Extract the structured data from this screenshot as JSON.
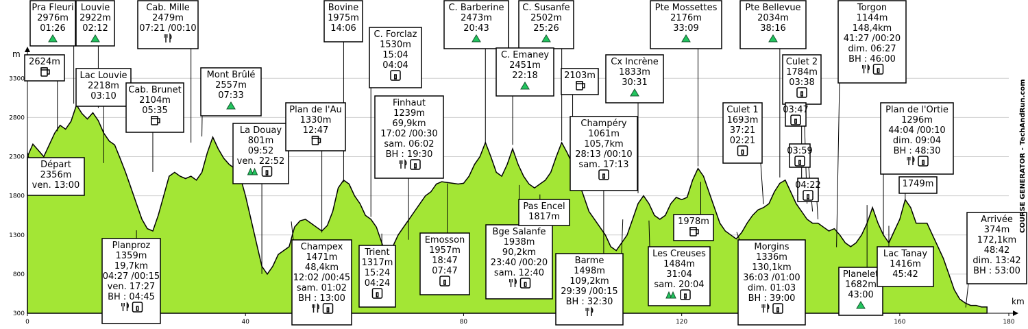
{
  "chart_data": {
    "type": "area",
    "xlabel": "km",
    "ylabel": "m",
    "xlim": [
      0,
      180
    ],
    "ylim": [
      300,
      3600
    ],
    "x_ticks": [
      0,
      40,
      80,
      120,
      160,
      180
    ],
    "y_ticks": [
      300,
      800,
      1300,
      1800,
      2300,
      2800,
      3300
    ],
    "grid": "horizontal",
    "fill_color": "#a3e635",
    "profile": [
      [
        0,
        2300
      ],
      [
        1,
        2460
      ],
      [
        3,
        2300
      ],
      [
        4,
        2450
      ],
      [
        5,
        2600
      ],
      [
        6,
        2700
      ],
      [
        7,
        2650
      ],
      [
        8,
        2750
      ],
      [
        9,
        2960
      ],
      [
        10,
        2850
      ],
      [
        11,
        2780
      ],
      [
        12,
        2860
      ],
      [
        13,
        2760
      ],
      [
        14,
        2600
      ],
      [
        15,
        2500
      ],
      [
        16,
        2450
      ],
      [
        17,
        2280
      ],
      [
        18,
        2100
      ],
      [
        19,
        1900
      ],
      [
        20,
        1700
      ],
      [
        21,
        1500
      ],
      [
        22,
        1380
      ],
      [
        23,
        1350
      ],
      [
        24,
        1550
      ],
      [
        25,
        1800
      ],
      [
        26,
        2050
      ],
      [
        27,
        2100
      ],
      [
        28,
        2050
      ],
      [
        29,
        2020
      ],
      [
        30,
        2050
      ],
      [
        31,
        2000
      ],
      [
        32,
        2100
      ],
      [
        33,
        2350
      ],
      [
        34,
        2550
      ],
      [
        35,
        2400
      ],
      [
        36,
        2280
      ],
      [
        37,
        2200
      ],
      [
        38,
        2150
      ],
      [
        39,
        2050
      ],
      [
        40,
        1800
      ],
      [
        41,
        1500
      ],
      [
        42,
        1200
      ],
      [
        43,
        900
      ],
      [
        44,
        800
      ],
      [
        45,
        900
      ],
      [
        46,
        1050
      ],
      [
        47,
        1100
      ],
      [
        48,
        1150
      ],
      [
        49,
        1400
      ],
      [
        50,
        1480
      ],
      [
        51,
        1500
      ],
      [
        52,
        1450
      ],
      [
        53,
        1400
      ],
      [
        54,
        1350
      ],
      [
        55,
        1420
      ],
      [
        56,
        1600
      ],
      [
        57,
        1900
      ],
      [
        58,
        2000
      ],
      [
        59,
        1950
      ],
      [
        60,
        1800
      ],
      [
        61,
        1700
      ],
      [
        62,
        1550
      ],
      [
        63,
        1500
      ],
      [
        64,
        1400
      ],
      [
        65,
        1200
      ],
      [
        66,
        1000
      ],
      [
        67,
        1150
      ],
      [
        68,
        1300
      ],
      [
        69,
        1400
      ],
      [
        70,
        1500
      ],
      [
        71,
        1600
      ],
      [
        72,
        1700
      ],
      [
        73,
        1800
      ],
      [
        74,
        1850
      ],
      [
        75,
        1950
      ],
      [
        76,
        1980
      ],
      [
        77,
        1970
      ],
      [
        78,
        1960
      ],
      [
        79,
        1950
      ],
      [
        80,
        1960
      ],
      [
        81,
        2050
      ],
      [
        82,
        2200
      ],
      [
        83,
        2300
      ],
      [
        84,
        2480
      ],
      [
        85,
        2300
      ],
      [
        86,
        2100
      ],
      [
        87,
        2050
      ],
      [
        88,
        2200
      ],
      [
        89,
        2400
      ],
      [
        90,
        2200
      ],
      [
        91,
        2050
      ],
      [
        92,
        1950
      ],
      [
        93,
        1900
      ],
      [
        94,
        1950
      ],
      [
        95,
        2000
      ],
      [
        96,
        2100
      ],
      [
        97,
        2300
      ],
      [
        98,
        2480
      ],
      [
        99,
        2350
      ],
      [
        100,
        2200
      ],
      [
        101,
        2000
      ],
      [
        102,
        1800
      ],
      [
        103,
        1600
      ],
      [
        104,
        1500
      ],
      [
        105,
        1400
      ],
      [
        106,
        1300
      ],
      [
        107,
        1150
      ],
      [
        108,
        1100
      ],
      [
        109,
        1200
      ],
      [
        110,
        1300
      ],
      [
        111,
        1500
      ],
      [
        112,
        1700
      ],
      [
        113,
        1800
      ],
      [
        114,
        1700
      ],
      [
        115,
        1550
      ],
      [
        116,
        1500
      ],
      [
        117,
        1550
      ],
      [
        118,
        1700
      ],
      [
        119,
        1780
      ],
      [
        120,
        1750
      ],
      [
        121,
        1780
      ],
      [
        122,
        2000
      ],
      [
        123,
        2150
      ],
      [
        124,
        2050
      ],
      [
        125,
        1850
      ],
      [
        126,
        1650
      ],
      [
        127,
        1450
      ],
      [
        128,
        1350
      ],
      [
        129,
        1300
      ],
      [
        130,
        1250
      ],
      [
        131,
        1330
      ],
      [
        132,
        1450
      ],
      [
        133,
        1550
      ],
      [
        134,
        1620
      ],
      [
        135,
        1650
      ],
      [
        136,
        1700
      ],
      [
        137,
        1850
      ],
      [
        138,
        1960
      ],
      [
        139,
        2000
      ],
      [
        140,
        1850
      ],
      [
        141,
        1700
      ],
      [
        142,
        1600
      ],
      [
        143,
        1500
      ],
      [
        144,
        1450
      ],
      [
        145,
        1450
      ],
      [
        146,
        1400
      ],
      [
        147,
        1350
      ],
      [
        148,
        1380
      ],
      [
        149,
        1300
      ],
      [
        150,
        1200
      ],
      [
        151,
        1150
      ],
      [
        152,
        1200
      ],
      [
        153,
        1300
      ],
      [
        154,
        1450
      ],
      [
        155,
        1650
      ],
      [
        156,
        1450
      ],
      [
        157,
        1300
      ],
      [
        158,
        1200
      ],
      [
        159,
        1350
      ],
      [
        160,
        1500
      ],
      [
        161,
        1750
      ],
      [
        162,
        1650
      ],
      [
        163,
        1450
      ],
      [
        164,
        1450
      ],
      [
        165,
        1450
      ],
      [
        166,
        1300
      ],
      [
        167,
        1150
      ],
      [
        168,
        1000
      ],
      [
        169,
        800
      ],
      [
        170,
        600
      ],
      [
        171,
        480
      ],
      [
        172,
        430
      ],
      [
        173,
        400
      ],
      [
        174,
        400
      ],
      [
        175,
        380
      ],
      [
        176,
        380
      ]
    ],
    "annotations": [
      {
        "lines": [
          "Pra Fleuri",
          "2976m",
          "01:26"
        ],
        "icons": [
          "summit"
        ],
        "km": 8.5,
        "elev": 2976
      },
      {
        "lines": [
          "Louvie",
          "2922m",
          "02:12"
        ],
        "icons": [
          "summit"
        ],
        "km": 13,
        "elev": 2922
      },
      {
        "lines": [
          "Cab. Mille",
          "2479m",
          "07:21 /00:10"
        ],
        "icons": [
          "food"
        ],
        "km": 30,
        "elev": 2479
      },
      {
        "lines": [
          "2624m"
        ],
        "icons": [
          "beer"
        ],
        "km": 5.5,
        "elev": 2624
      },
      {
        "lines": [
          "Lac Louvie",
          "2218m",
          "03:10"
        ],
        "icons": [],
        "km": 14,
        "elev": 2218
      },
      {
        "lines": [
          "Cab. Brunet",
          "2104m",
          "05:35"
        ],
        "icons": [
          "beer"
        ],
        "km": 23,
        "elev": 2104
      },
      {
        "lines": [
          "Mont Brûlé",
          "2557m",
          "07:33"
        ],
        "icons": [
          "summit"
        ],
        "km": 32,
        "elev": 2557
      },
      {
        "lines": [
          "Départ",
          "2356m",
          "ven. 13:00"
        ],
        "icons": [],
        "km": 0,
        "elev": 2356
      },
      {
        "lines": [
          "La Douay",
          "801m",
          "09:52",
          "ven. 22:52"
        ],
        "icons": [
          "peaks",
          "info"
        ],
        "km": 43,
        "elev": 801
      },
      {
        "lines": [
          "Plan de l'Au",
          "1330m",
          "12:47"
        ],
        "icons": [
          "beer"
        ],
        "km": 54,
        "elev": 1330
      },
      {
        "lines": [
          "Bovine",
          "1975m",
          "14:06"
        ],
        "icons": [],
        "km": 58,
        "elev": 1975
      },
      {
        "lines": [
          "C. Forclaz",
          "1530m",
          "15:04",
          "04:04"
        ],
        "icons": [
          "info"
        ],
        "km": 63,
        "elev": 1530
      },
      {
        "lines": [
          "Planproz",
          "1359m",
          "19,7km",
          "04:27 /00:15",
          "ven. 17:27",
          "BH : 04:45"
        ],
        "icons": [
          "food",
          "info"
        ],
        "km": 20,
        "elev": 1359
      },
      {
        "lines": [
          "Champex",
          "1471m",
          "48,4km",
          "12:02 /00:45",
          "sam. 01:02",
          "BH : 13:00"
        ],
        "icons": [
          "food",
          "info"
        ],
        "km": 48.4,
        "elev": 1471
      },
      {
        "lines": [
          "Trient",
          "1317m",
          "15:24",
          "04:24"
        ],
        "icons": [
          "info"
        ],
        "km": 65,
        "elev": 1317
      },
      {
        "lines": [
          "Finhaut",
          "1239m",
          "69,9km",
          "17:02 /00:30",
          "sam. 06:02",
          "BH : 19:30"
        ],
        "icons": [
          "food",
          "info"
        ],
        "km": 69.9,
        "elev": 1239
      },
      {
        "lines": [
          "Emosson",
          "1957m",
          "18:47",
          "07:47"
        ],
        "icons": [
          "info"
        ],
        "km": 77,
        "elev": 1957
      },
      {
        "lines": [
          "C. Barberine",
          "2473m",
          "20:43"
        ],
        "icons": [
          "summit"
        ],
        "km": 84,
        "elev": 2473
      },
      {
        "lines": [
          "C. Susanfe",
          "2502m",
          "25:26"
        ],
        "icons": [
          "summit"
        ],
        "km": 98,
        "elev": 2502
      },
      {
        "lines": [
          "C. Emaney",
          "2451m",
          "22:18"
        ],
        "icons": [
          "summit"
        ],
        "km": 89,
        "elev": 2451
      },
      {
        "lines": [
          "2103m"
        ],
        "icons": [
          "beer"
        ],
        "km": 100,
        "elev": 2103
      },
      {
        "lines": [
          "Bge Salanfe",
          "1938m",
          "90,2km",
          "23:40 /00:20",
          "sam. 12:40"
        ],
        "icons": [
          "food",
          "info"
        ],
        "km": 90.2,
        "elev": 1938
      },
      {
        "lines": [
          "Pas Encel",
          "1817m"
        ],
        "icons": [],
        "km": 94,
        "elev": 1817
      },
      {
        "lines": [
          "Champéry",
          "1061m",
          "105,7km",
          "28:13 /00:10",
          "sam. 17:13"
        ],
        "icons": [
          "info"
        ],
        "km": 105.7,
        "elev": 1061
      },
      {
        "lines": [
          "Barme",
          "1498m",
          "109,2km",
          "29:39 /00:15",
          "BH : 32:30"
        ],
        "icons": [
          "food"
        ],
        "km": 109.2,
        "elev": 1498
      },
      {
        "lines": [
          "Cx Incrène",
          "1833m",
          "30:31"
        ],
        "icons": [
          "summit"
        ],
        "km": 112,
        "elev": 1833
      },
      {
        "lines": [
          "Pte Mossettes",
          "2176m",
          "33:09"
        ],
        "icons": [
          "summit"
        ],
        "km": 123,
        "elev": 2176
      },
      {
        "lines": [
          "1978m"
        ],
        "icons": [
          "beer"
        ],
        "km": 123.5,
        "elev": 1978
      },
      {
        "lines": [
          "Les Creuses",
          "1484m",
          "31:04",
          "sam. 20:04"
        ],
        "icons": [
          "peaks",
          "info"
        ],
        "km": 114,
        "elev": 1484
      },
      {
        "lines": [
          "Culet 1",
          "1693m",
          "37:21",
          "02:21"
        ],
        "icons": [
          "info"
        ],
        "km": 135,
        "elev": 1693
      },
      {
        "lines": [
          "Pte Bellevue",
          "2034m",
          "38:16"
        ],
        "icons": [
          "summit"
        ],
        "km": 138,
        "elev": 2034
      },
      {
        "lines": [
          "Culet 2",
          "1784m",
          "03:38"
        ],
        "icons": [
          "info"
        ],
        "km": 142,
        "elev": 1784
      },
      {
        "lines": [
          "03:47"
        ],
        "icons": [
          "info"
        ],
        "km": 143,
        "elev": 1700
      },
      {
        "lines": [
          "03:59"
        ],
        "icons": [
          "info"
        ],
        "km": 144,
        "elev": 1600
      },
      {
        "lines": [
          "04:22"
        ],
        "icons": [
          "info"
        ],
        "km": 145,
        "elev": 1500
      },
      {
        "lines": [
          "Morgins",
          "1336m",
          "130,1km",
          "36:03 /01:00",
          "dim. 01:03",
          "BH : 39:00"
        ],
        "icons": [
          "food",
          "info"
        ],
        "km": 130.1,
        "elev": 1336
      },
      {
        "lines": [
          "Torgon",
          "1144m",
          "148,4km",
          "41:27 /00:20",
          "dim. 06:27",
          "BH : 46:00"
        ],
        "icons": [
          "food",
          "info"
        ],
        "km": 148.4,
        "elev": 1144
      },
      {
        "lines": [
          "Plan de l'Ortie",
          "1296m",
          "44:04 /00:10",
          "dim. 09:04",
          "BH : 48:30"
        ],
        "icons": [
          "food",
          "info"
        ],
        "km": 157,
        "elev": 1296
      },
      {
        "lines": [
          "1749m"
        ],
        "icons": [],
        "km": 161,
        "elev": 1749
      },
      {
        "lines": [
          "Planelet",
          "1682m",
          "43:00"
        ],
        "icons": [
          "summit"
        ],
        "km": 154,
        "elev": 1682
      },
      {
        "lines": [
          "Lac Tanay",
          "1416m",
          "45:42"
        ],
        "icons": [],
        "km": 158,
        "elev": 1416
      },
      {
        "lines": [
          "Arrivée",
          "374m",
          "172,1km",
          "48:42",
          "dim. 13:42",
          "BH : 53:00"
        ],
        "icons": [],
        "km": 172.1,
        "elev": 374
      }
    ]
  },
  "watermark": "COURSE GENERATOR - TechAndRun.com"
}
